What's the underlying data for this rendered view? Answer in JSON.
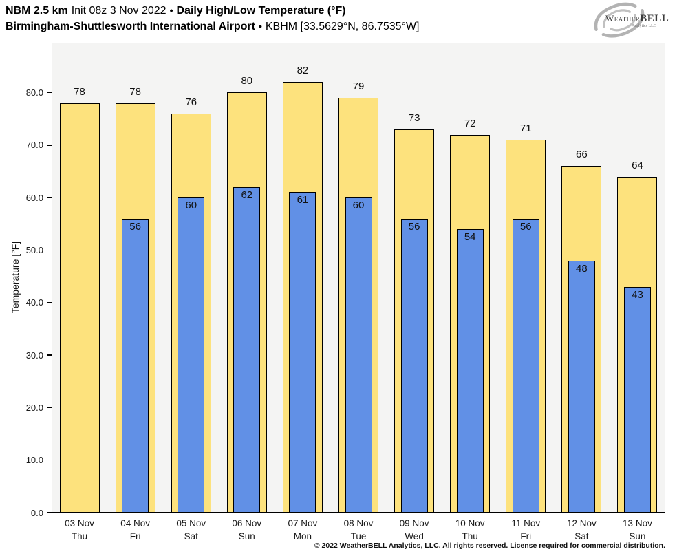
{
  "header": {
    "model": "NBM 2.5 km",
    "init": "Init 08z 3 Nov 2022",
    "bullet": "•",
    "product": "Daily High/Low Temperature (°F)",
    "station": "Birmingham-Shuttlesworth International Airport",
    "station_meta": "KBHM [33.5629°N, 86.7535°W]"
  },
  "logo": {
    "word_weather": "Weather",
    "word_bell": "BELL",
    "subtext": "Analytics LLC"
  },
  "footer": {
    "copyright": "© 2022 WeatherBELL Analytics, LLC. All rights reserved. License required for commercial distribution."
  },
  "chart_data": {
    "type": "bar",
    "title": "Daily High/Low Temperature (°F)",
    "ylabel": "Temperature [°F]",
    "categories": [
      "03 Nov",
      "04 Nov",
      "05 Nov",
      "06 Nov",
      "07 Nov",
      "08 Nov",
      "09 Nov",
      "10 Nov",
      "11 Nov",
      "12 Nov",
      "13 Nov"
    ],
    "day_labels": [
      "Thu",
      "Fri",
      "Sat",
      "Sun",
      "Mon",
      "Tue",
      "Wed",
      "Thu",
      "Fri",
      "Sat",
      "Sun"
    ],
    "series": [
      {
        "name": "High",
        "color": "#FDE27D",
        "values": [
          78,
          78,
          76,
          80,
          82,
          79,
          73,
          72,
          71,
          66,
          64
        ]
      },
      {
        "name": "Low",
        "color": "#6190E6",
        "values": [
          null,
          56,
          60,
          62,
          61,
          60,
          56,
          54,
          56,
          48,
          43
        ]
      }
    ],
    "ylim": [
      0,
      89.5
    ],
    "yticks": [
      0,
      10,
      20,
      30,
      40,
      50,
      60,
      70,
      80
    ],
    "ytick_labels": [
      "0.0",
      "10.0",
      "20.0",
      "30.0",
      "40.0",
      "50.0",
      "60.0",
      "70.0",
      "80.0"
    ],
    "grid": false,
    "legend": false,
    "plot_background": "#f4f4f3",
    "bar_border_color": "#000000"
  }
}
